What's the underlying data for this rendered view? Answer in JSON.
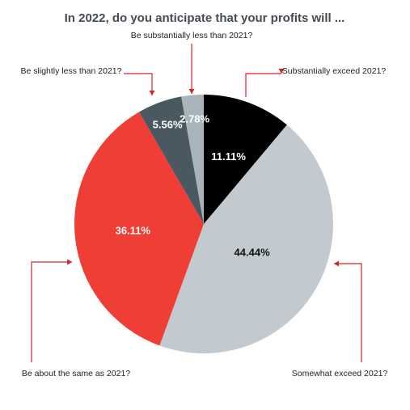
{
  "chart_data": {
    "type": "pie",
    "title": "In 2022, do you anticipate that your profits will ...",
    "start": "12 o'clock, clockwise",
    "slices": [
      {
        "label": "Substantially exceed 2021?",
        "value": 11.11,
        "display": "11.11%",
        "color": "#000000",
        "text_color": "#ffffff"
      },
      {
        "label": "Somewhat exceed 2021?",
        "value": 44.44,
        "display": "44.44%",
        "color": "#c3cacf",
        "text_color": "#111111"
      },
      {
        "label": "Be about the same as 2021?",
        "value": 36.11,
        "display": "36.11%",
        "color": "#ee3e36",
        "text_color": "#ffffff"
      },
      {
        "label": "Be slightly less than 2021?",
        "value": 5.56,
        "display": "5.56%",
        "color": "#4a5861",
        "text_color": "#ffffff"
      },
      {
        "label": "Be substantially less than 2021?",
        "value": 2.78,
        "display": "2.78%",
        "color": "#a9b3ba",
        "text_color": "#ffffff"
      }
    ],
    "leader_color": "#d8232a"
  }
}
